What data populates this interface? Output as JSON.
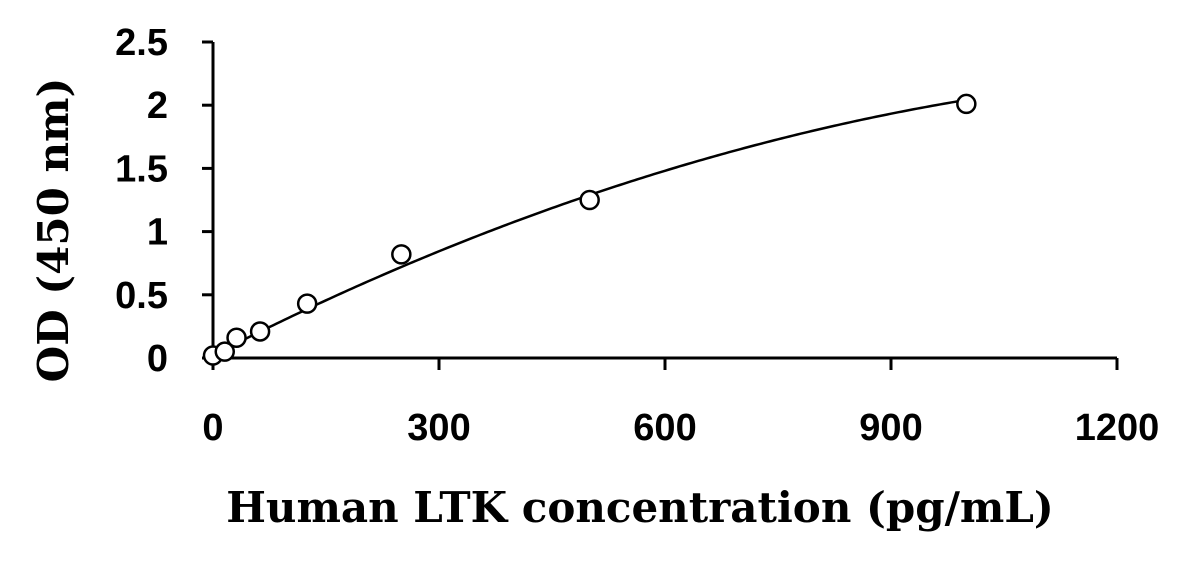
{
  "chart_data": {
    "type": "scatter",
    "xlabel": "Human LTK concentration (pg/mL)",
    "ylabel": "OD (450 nm)",
    "xlim": [
      0,
      1200
    ],
    "ylim": [
      0,
      2.5
    ],
    "x_ticks": [
      "0",
      "300",
      "600",
      "900",
      "1200"
    ],
    "y_ticks": [
      "0",
      "0.5",
      "1",
      "1.5",
      "2",
      "2.5"
    ],
    "grid": false,
    "legend": "none",
    "series": [
      {
        "points": [
          {
            "x": 0,
            "y": 0.02
          },
          {
            "x": 15.6,
            "y": 0.05
          },
          {
            "x": 31.25,
            "y": 0.16
          },
          {
            "x": 62.5,
            "y": 0.21
          },
          {
            "x": 125,
            "y": 0.43
          },
          {
            "x": 250,
            "y": 0.82
          },
          {
            "x": 500,
            "y": 1.25
          },
          {
            "x": 1000,
            "y": 2.01
          }
        ],
        "fit": "polynomial",
        "fit_coefficients": [
          0.022,
          0.00305,
          -1.03e-06
        ]
      }
    ]
  }
}
